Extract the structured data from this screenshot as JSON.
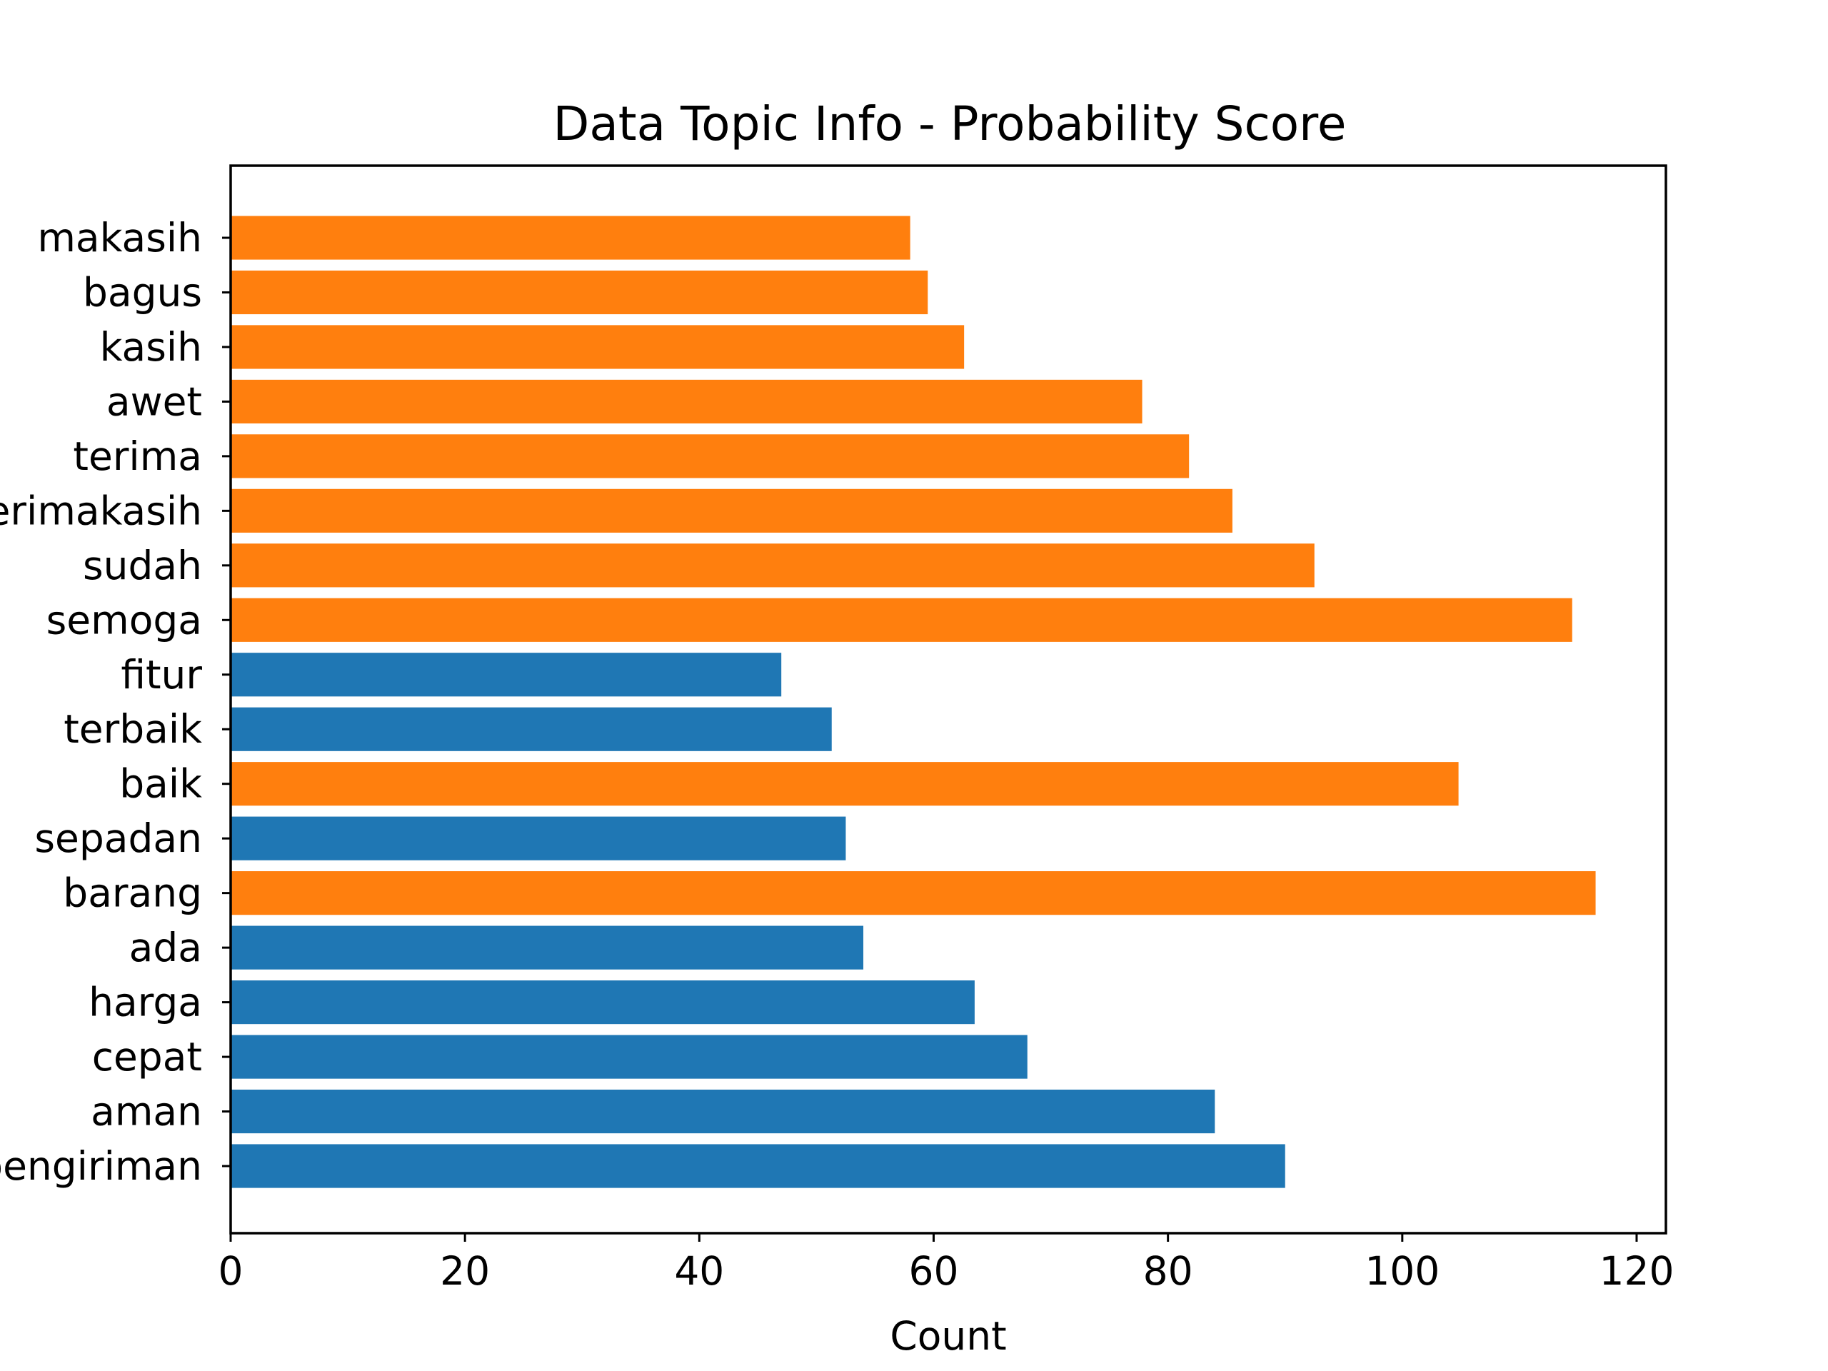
{
  "chart_data": {
    "type": "bar",
    "orientation": "horizontal",
    "title": "Data Topic Info - Probability Score",
    "xlabel": "Count",
    "ylabel": "",
    "xlim": [
      0,
      122.5
    ],
    "xticks": [
      0,
      20,
      40,
      60,
      80,
      100,
      120
    ],
    "grid": false,
    "legend": "none",
    "colors": {
      "blue": "#1f77b4",
      "orange": "#ff7f0e"
    },
    "categories": [
      "pengiriman",
      "aman",
      "cepat",
      "harga",
      "ada",
      "barang",
      "sepadan",
      "baik",
      "terbaik",
      "fitur",
      "semoga",
      "sudah",
      "terimakasih",
      "terima",
      "awet",
      "kasih",
      "bagus",
      "makasih"
    ],
    "values": [
      90,
      84,
      68,
      63.5,
      54,
      116.5,
      52.5,
      104.8,
      51.3,
      47,
      114.5,
      92.5,
      85.5,
      81.8,
      77.8,
      62.6,
      59.5,
      58
    ],
    "bar_colors": [
      "blue",
      "blue",
      "blue",
      "blue",
      "blue",
      "orange",
      "blue",
      "orange",
      "blue",
      "blue",
      "orange",
      "orange",
      "orange",
      "orange",
      "orange",
      "orange",
      "orange",
      "orange"
    ]
  }
}
